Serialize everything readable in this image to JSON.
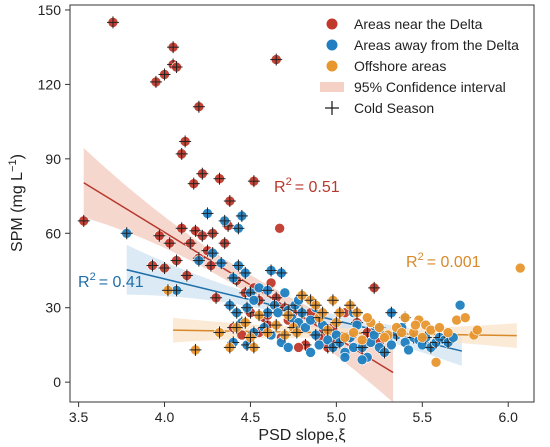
{
  "chart_data": {
    "type": "scatter",
    "xlabel": "PSD slope,ξ",
    "ylabel_main": "SPM (mg L",
    "ylabel_sup": "−1",
    "ylabel_close": ")",
    "xlim": [
      3.45,
      6.15
    ],
    "ylim": [
      -8,
      152
    ],
    "xticks": [
      3.5,
      4.0,
      4.5,
      5.0,
      5.5,
      6.0
    ],
    "xtick_labels": [
      "3.5",
      "4.0",
      "4.5",
      "5.0",
      "5.5",
      "6.0"
    ],
    "yticks": [
      0,
      30,
      60,
      90,
      120,
      150
    ],
    "ytick_labels": [
      "0",
      "30",
      "60",
      "90",
      "120",
      "150"
    ],
    "grid": false,
    "legend_position": "top-right",
    "legend": [
      {
        "label": "Areas near the Delta",
        "marker": "circle",
        "color": "#c0392b"
      },
      {
        "label": "Areas away from the Delta",
        "marker": "circle",
        "color": "#1f7fc0"
      },
      {
        "label": "Offshore areas",
        "marker": "circle",
        "color": "#e8962e"
      },
      {
        "label": "95% Confidence interval",
        "marker": "band",
        "color": "#f5d0c5"
      },
      {
        "label": "Cold Season",
        "marker": "plus",
        "color": "#222222"
      }
    ],
    "series": [
      {
        "name": "Areas near the Delta",
        "color": "#c0392b",
        "points": [
          [
            3.7,
            145,
            1
          ],
          [
            3.53,
            65,
            1
          ],
          [
            3.95,
            121,
            1
          ],
          [
            4.0,
            124,
            1
          ],
          [
            4.05,
            128,
            1
          ],
          [
            4.05,
            135,
            1
          ],
          [
            4.07,
            127,
            1
          ],
          [
            4.1,
            92,
            1
          ],
          [
            4.12,
            97,
            1
          ],
          [
            4.17,
            80,
            1
          ],
          [
            4.2,
            111,
            1
          ],
          [
            4.22,
            84,
            1
          ],
          [
            4.28,
            60,
            1
          ],
          [
            4.32,
            82,
            1
          ],
          [
            4.38,
            73,
            1
          ],
          [
            4.52,
            81,
            1
          ],
          [
            4.65,
            130,
            1
          ],
          [
            3.97,
            59,
            1
          ],
          [
            4.03,
            56,
            1
          ],
          [
            4.07,
            49,
            1
          ],
          [
            4.1,
            62,
            1
          ],
          [
            4.15,
            56,
            1
          ],
          [
            4.18,
            61,
            1
          ],
          [
            4.22,
            59,
            1
          ],
          [
            4.25,
            53,
            1
          ],
          [
            4.35,
            56,
            1
          ],
          [
            4.37,
            63,
            1
          ],
          [
            3.93,
            47,
            1
          ],
          [
            4.0,
            46,
            1
          ],
          [
            4.13,
            43,
            1
          ],
          [
            4.2,
            50,
            1
          ],
          [
            4.27,
            47,
            1
          ],
          [
            4.42,
            41,
            1
          ],
          [
            4.47,
            36,
            1
          ],
          [
            4.5,
            28,
            1
          ],
          [
            4.55,
            33,
            1
          ],
          [
            4.58,
            26,
            1
          ],
          [
            4.6,
            23,
            1
          ],
          [
            4.67,
            62,
            0
          ],
          [
            4.7,
            30,
            1
          ],
          [
            4.75,
            28,
            1
          ],
          [
            4.78,
            21,
            1
          ],
          [
            4.82,
            15,
            1
          ],
          [
            4.88,
            26,
            1
          ],
          [
            4.92,
            20,
            1
          ],
          [
            4.95,
            14,
            1
          ],
          [
            5.0,
            16,
            0
          ],
          [
            5.05,
            28,
            0
          ],
          [
            5.12,
            24,
            1
          ],
          [
            5.18,
            20,
            1
          ],
          [
            5.22,
            38,
            1
          ],
          [
            4.6,
            27,
            0
          ],
          [
            4.72,
            25,
            0
          ],
          [
            4.85,
            28,
            0
          ],
          [
            4.98,
            22,
            0
          ],
          [
            5.08,
            18,
            1
          ],
          [
            5.15,
            15,
            0
          ],
          [
            4.4,
            22,
            1
          ],
          [
            4.45,
            19,
            0
          ],
          [
            4.68,
            18,
            0
          ],
          [
            4.78,
            14,
            0
          ],
          [
            4.9,
            18,
            0
          ],
          [
            5.25,
            16,
            0
          ],
          [
            4.3,
            34,
            1
          ],
          [
            4.62,
            40,
            0
          ],
          [
            4.52,
            38,
            0
          ],
          [
            4.65,
            34,
            1
          ],
          [
            4.55,
            20,
            0
          ]
        ]
      },
      {
        "name": "Areas away from the Delta",
        "color": "#1f7fc0",
        "points": [
          [
            3.78,
            60,
            1
          ],
          [
            4.07,
            37,
            1
          ],
          [
            4.25,
            68,
            1
          ],
          [
            4.28,
            52,
            1
          ],
          [
            4.35,
            65,
            1
          ],
          [
            4.43,
            62,
            1
          ],
          [
            4.45,
            67,
            1
          ],
          [
            4.2,
            49,
            1
          ],
          [
            4.33,
            48,
            1
          ],
          [
            4.4,
            42,
            1
          ],
          [
            4.43,
            47,
            1
          ],
          [
            4.47,
            44,
            1
          ],
          [
            4.5,
            36,
            1
          ],
          [
            4.38,
            31,
            1
          ],
          [
            4.42,
            28,
            1
          ],
          [
            4.45,
            24,
            1
          ],
          [
            4.48,
            30,
            1
          ],
          [
            4.52,
            33,
            0
          ],
          [
            4.55,
            38,
            0
          ],
          [
            4.6,
            37,
            1
          ],
          [
            4.62,
            45,
            1
          ],
          [
            4.64,
            31,
            1
          ],
          [
            4.66,
            28,
            0
          ],
          [
            4.68,
            44,
            1
          ],
          [
            4.7,
            36,
            0
          ],
          [
            4.72,
            29,
            1
          ],
          [
            4.74,
            26,
            0
          ],
          [
            4.76,
            31,
            1
          ],
          [
            4.78,
            24,
            0
          ],
          [
            4.8,
            28,
            1
          ],
          [
            4.82,
            22,
            0
          ],
          [
            4.85,
            25,
            0
          ],
          [
            4.88,
            19,
            1
          ],
          [
            4.9,
            15,
            0
          ],
          [
            4.92,
            23,
            0
          ],
          [
            4.95,
            17,
            0
          ],
          [
            4.98,
            14,
            1
          ],
          [
            5.0,
            19,
            0
          ],
          [
            5.02,
            16,
            1
          ],
          [
            5.05,
            12,
            0
          ],
          [
            5.08,
            18,
            0
          ],
          [
            5.1,
            14,
            0
          ],
          [
            5.12,
            23,
            0
          ],
          [
            5.15,
            14,
            1
          ],
          [
            5.18,
            10,
            0
          ],
          [
            5.2,
            16,
            0
          ],
          [
            5.22,
            19,
            0
          ],
          [
            5.25,
            14,
            0
          ],
          [
            5.28,
            12,
            1
          ],
          [
            5.3,
            18,
            0
          ],
          [
            5.32,
            15,
            0
          ],
          [
            5.35,
            19,
            1
          ],
          [
            5.38,
            22,
            0
          ],
          [
            5.4,
            16,
            0
          ],
          [
            5.42,
            13,
            0
          ],
          [
            5.45,
            18,
            1
          ],
          [
            5.48,
            17,
            0
          ],
          [
            5.5,
            15,
            0
          ],
          [
            5.52,
            18,
            1
          ],
          [
            5.55,
            14,
            1
          ],
          [
            5.58,
            16,
            1
          ],
          [
            5.6,
            18,
            1
          ],
          [
            5.63,
            17,
            1
          ],
          [
            5.65,
            16,
            1
          ],
          [
            5.68,
            18,
            0
          ],
          [
            5.72,
            31,
            0
          ],
          [
            4.58,
            22,
            1
          ],
          [
            4.62,
            19,
            0
          ],
          [
            4.68,
            16,
            0
          ],
          [
            4.72,
            14,
            0
          ],
          [
            4.85,
            12,
            0
          ],
          [
            5.05,
            10,
            0
          ],
          [
            5.15,
            9,
            0
          ],
          [
            4.52,
            20,
            1
          ],
          [
            4.88,
            30,
            0
          ],
          [
            5.1,
            28,
            0
          ],
          [
            5.32,
            28,
            1
          ],
          [
            5.4,
            26,
            1
          ],
          [
            5.25,
            22,
            1
          ],
          [
            4.32,
            20,
            1
          ],
          [
            4.4,
            16,
            1
          ],
          [
            4.48,
            15,
            1
          ],
          [
            4.6,
            28,
            1
          ],
          [
            4.78,
            33,
            0
          ]
        ]
      },
      {
        "name": "Offshore areas",
        "color": "#e8962e",
        "points": [
          [
            4.02,
            37,
            1
          ],
          [
            4.18,
            13,
            1
          ],
          [
            4.32,
            20,
            1
          ],
          [
            4.38,
            14,
            1
          ],
          [
            4.42,
            22,
            1
          ],
          [
            4.47,
            24,
            1
          ],
          [
            4.5,
            18,
            1
          ],
          [
            4.55,
            27,
            1
          ],
          [
            4.6,
            20,
            1
          ],
          [
            4.65,
            23,
            1
          ],
          [
            4.7,
            19,
            1
          ],
          [
            4.75,
            22,
            1
          ],
          [
            4.8,
            35,
            1
          ],
          [
            4.85,
            33,
            1
          ],
          [
            4.9,
            26,
            1
          ],
          [
            4.95,
            21,
            1
          ],
          [
            5.0,
            24,
            1
          ],
          [
            5.05,
            18,
            0
          ],
          [
            5.1,
            20,
            0
          ],
          [
            5.15,
            17,
            0
          ],
          [
            5.2,
            24,
            0
          ],
          [
            5.25,
            22,
            0
          ],
          [
            5.3,
            19,
            0
          ],
          [
            5.35,
            22,
            0
          ],
          [
            5.4,
            26,
            0
          ],
          [
            5.45,
            20,
            0
          ],
          [
            5.48,
            25,
            0
          ],
          [
            5.5,
            18,
            0
          ],
          [
            5.52,
            23,
            0
          ],
          [
            5.55,
            21,
            0
          ],
          [
            5.58,
            8,
            0
          ],
          [
            5.6,
            22,
            0
          ],
          [
            5.65,
            20,
            0
          ],
          [
            5.7,
            25,
            0
          ],
          [
            5.75,
            26,
            0
          ],
          [
            5.8,
            19,
            0
          ],
          [
            5.82,
            21,
            0
          ],
          [
            6.07,
            46,
            0
          ],
          [
            4.88,
            31,
            1
          ],
          [
            4.92,
            28,
            1
          ],
          [
            4.98,
            33,
            1
          ],
          [
            5.02,
            28,
            1
          ],
          [
            5.08,
            31,
            1
          ],
          [
            5.12,
            28,
            1
          ],
          [
            5.18,
            26,
            0
          ],
          [
            5.28,
            18,
            0
          ],
          [
            5.38,
            20,
            0
          ],
          [
            5.46,
            23,
            0
          ],
          [
            4.72,
            27,
            1
          ],
          [
            4.77,
            20,
            1
          ],
          [
            4.52,
            14,
            1
          ]
        ]
      }
    ],
    "regressions": [
      {
        "series": "Areas near the Delta",
        "x_start": 3.53,
        "x_end": 5.33,
        "intercept": 230.4,
        "slope": -42.5,
        "band_half_width_start": 14,
        "band_half_width_mid": 4,
        "band_half_width_end": 12,
        "color": "#b7392d",
        "band_color": "#f3c9be",
        "r2_label": "R",
        "r2_exp": "2",
        "r2_value": "= 0.51"
      },
      {
        "series": "Areas away from the Delta",
        "x_start": 3.78,
        "x_end": 5.73,
        "intercept": 108.8,
        "slope": -16.8,
        "band_half_width_start": 10,
        "band_half_width_mid": 2.2,
        "band_half_width_end": 6,
        "color": "#1f6faa",
        "band_color": "#cfe3f1",
        "r2_label": "R",
        "r2_exp": "2",
        "r2_value": "= 0.41"
      },
      {
        "series": "Offshore areas",
        "x_start": 4.05,
        "x_end": 6.05,
        "intercept": 25.4,
        "slope": -1.1,
        "band_half_width_start": 5,
        "band_half_width_mid": 2,
        "band_half_width_end": 5,
        "color": "#d9892a",
        "band_color": "#f8e3c8",
        "r2_label": "R",
        "r2_exp": "2",
        "r2_value": "= 0.001"
      }
    ]
  }
}
